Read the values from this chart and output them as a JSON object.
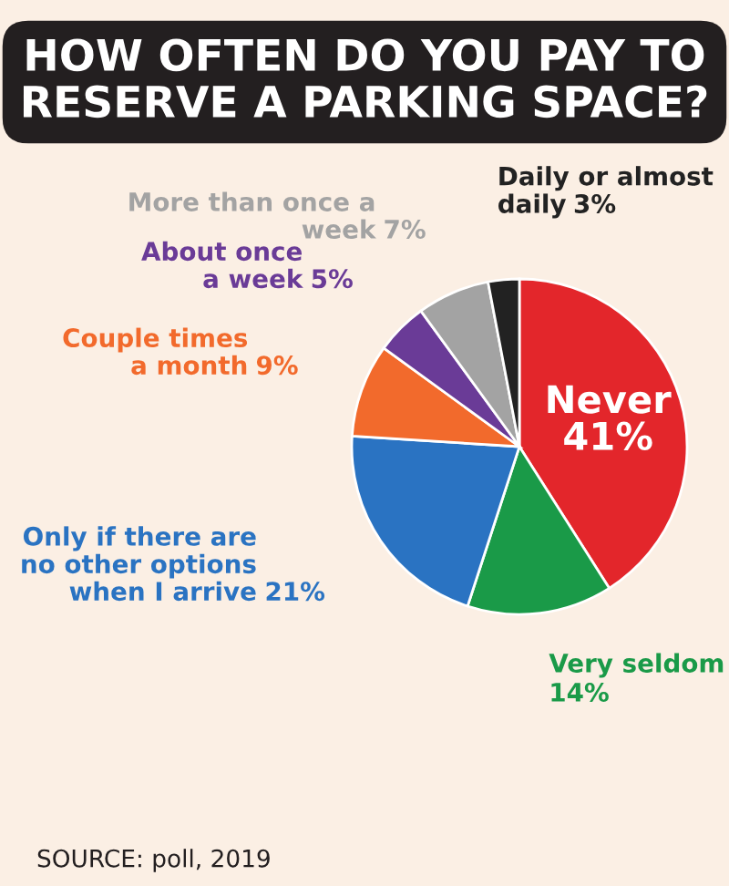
{
  "chart_data": {
    "type": "pie",
    "title": "HOW OFTEN DO YOU PAY TO\nRESERVE A PARKING SPACE?",
    "categories": [
      "Never",
      "Very seldom",
      "Only if there are\nno other options\nwhen I arrive",
      "Couple times\na month",
      "About once\na week",
      "More than once a\nweek",
      "Daily or almost\ndaily"
    ],
    "values": [
      41,
      14,
      21,
      9,
      5,
      7,
      3
    ],
    "colors": [
      "#e3262b",
      "#1a9a48",
      "#2a73c2",
      "#f26a2c",
      "#6a3b97",
      "#a3a3a3",
      "#222222"
    ],
    "value_labels": [
      "41%",
      "14%",
      "21%",
      "9%",
      "5%",
      "7%",
      "3%"
    ],
    "annotations": [
      "SOURCE: poll, 2019"
    ]
  }
}
